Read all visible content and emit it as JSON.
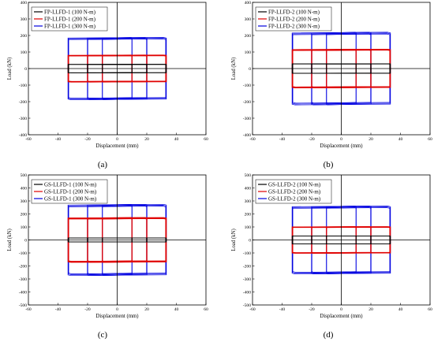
{
  "chart_data": [
    {
      "type": "line",
      "panel_label": "(a)",
      "xlabel": "Displacement (mm)",
      "ylabel": "Load (kN)",
      "xlim": [
        -60,
        60
      ],
      "ylim": [
        -400,
        400
      ],
      "xticks": [
        -60,
        -40,
        -20,
        0,
        20,
        40,
        60
      ],
      "yticks": [
        -400,
        -300,
        -200,
        -100,
        0,
        100,
        200,
        300,
        400
      ],
      "legend_position": "top-left",
      "amplitudes_mm": [
        10,
        20,
        33
      ],
      "series": [
        {
          "name": "FP-LLFD-1 (100 N-m)",
          "color": "#000000",
          "load_kN": 25
        },
        {
          "name": "FP-LLFD-1 (200 N-m)",
          "color": "#e00000",
          "load_kN": 78
        },
        {
          "name": "FP-LLFD-1 (300 N-m)",
          "color": "#0000e0",
          "load_kN": 180
        }
      ]
    },
    {
      "type": "line",
      "panel_label": "(b)",
      "xlabel": "Displacement (mm)",
      "ylabel": "Load (kN)",
      "xlim": [
        -60,
        60
      ],
      "ylim": [
        -400,
        400
      ],
      "xticks": [
        -60,
        -40,
        -20,
        0,
        20,
        40,
        60
      ],
      "yticks": [
        -400,
        -300,
        -200,
        -100,
        0,
        100,
        200,
        300,
        400
      ],
      "legend_position": "top-left",
      "amplitudes_mm": [
        10,
        20,
        33
      ],
      "series": [
        {
          "name": "FP-LLFD-2 (100 N-m)",
          "color": "#000000",
          "load_kN": 28
        },
        {
          "name": "FP-LLFD-2 (200 N-m)",
          "color": "#e00000",
          "load_kN": 112
        },
        {
          "name": "FP-LLFD-2 (300 N-m)",
          "color": "#0000e0",
          "load_kN": 210
        }
      ]
    },
    {
      "type": "line",
      "panel_label": "(c)",
      "xlabel": "Displacement (mm)",
      "ylabel": "Load (kN)",
      "xlim": [
        -60,
        60
      ],
      "ylim": [
        -500,
        500
      ],
      "xticks": [
        -60,
        -40,
        -20,
        0,
        20,
        40,
        60
      ],
      "yticks": [
        -500,
        -400,
        -300,
        -200,
        -100,
        0,
        100,
        200,
        300,
        400,
        500
      ],
      "legend_position": "top-left",
      "amplitudes_mm": [
        10,
        20,
        33
      ],
      "series": [
        {
          "name": "GS-LLFD-1 (100 N-m)",
          "color": "#000000",
          "load_kN": 15
        },
        {
          "name": "GS-LLFD-1 (200 N-m)",
          "color": "#e00000",
          "load_kN": 165
        },
        {
          "name": "GS-LLFD-1 (300 N-m)",
          "color": "#0000e0",
          "load_kN": 262
        }
      ]
    },
    {
      "type": "line",
      "panel_label": "(d)",
      "xlabel": "Displacement (mm)",
      "ylabel": "Load (kN)",
      "xlim": [
        -60,
        60
      ],
      "ylim": [
        -500,
        500
      ],
      "xticks": [
        -60,
        -40,
        -20,
        0,
        20,
        40,
        60
      ],
      "yticks": [
        -500,
        -400,
        -300,
        -200,
        -100,
        0,
        100,
        200,
        300,
        400,
        500
      ],
      "legend_position": "top-left",
      "amplitudes_mm": [
        10,
        20,
        33
      ],
      "series": [
        {
          "name": "GS-LLFD-2 (100 N-m)",
          "color": "#000000",
          "load_kN": 30
        },
        {
          "name": "GS-LLFD-2 (200 N-m)",
          "color": "#e00000",
          "load_kN": 98
        },
        {
          "name": "GS-LLFD-2 (300 N-m)",
          "color": "#0000e0",
          "load_kN": 250
        }
      ]
    }
  ]
}
